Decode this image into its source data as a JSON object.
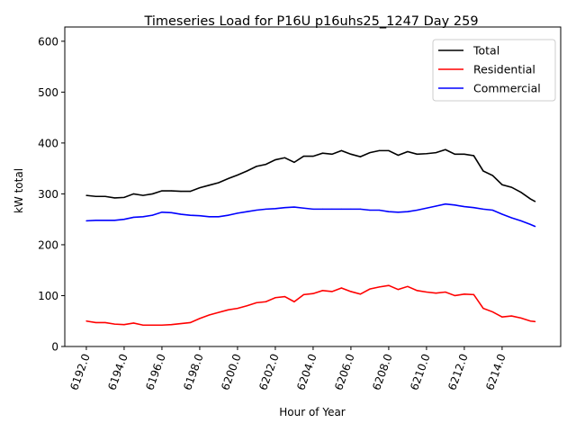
{
  "chart_data": {
    "type": "line",
    "title": "Timeseries Load for P16U p16uhs25_1247  Day 259",
    "xlabel": "Hour of Year",
    "ylabel": "kW total",
    "xlim": [
      6190.86,
      6217.1
    ],
    "ylim": [
      0,
      628
    ],
    "xticks": [
      6192,
      6194,
      6196,
      6198,
      6200,
      6202,
      6204,
      6206,
      6208,
      6210,
      6212,
      6214
    ],
    "xtick_labels": [
      "6192.0",
      "6194.0",
      "6196.0",
      "6198.0",
      "6200.0",
      "6202.0",
      "6204.0",
      "6206.0",
      "6208.0",
      "6210.0",
      "6212.0",
      "6214.0"
    ],
    "yticks": [
      0,
      100,
      200,
      300,
      400,
      500,
      600
    ],
    "ytick_labels": [
      "0",
      "100",
      "200",
      "300",
      "400",
      "500",
      "600"
    ],
    "legend": "top-right",
    "x": [
      6192,
      6192.5,
      6193,
      6193.5,
      6194,
      6194.5,
      6195,
      6195.5,
      6196,
      6196.5,
      6197,
      6197.5,
      6198,
      6198.5,
      6199,
      6199.5,
      6200,
      6200.5,
      6201,
      6201.5,
      6202,
      6202.5,
      6203,
      6203.5,
      6204,
      6204.5,
      6205,
      6205.5,
      6206,
      6206.5,
      6207,
      6207.5,
      6208,
      6208.5,
      6209,
      6209.5,
      6210,
      6210.5,
      6211,
      6211.5,
      6212,
      6212.5,
      6213,
      6213.5,
      6214,
      6214.5,
      6215,
      6215.5,
      6215.75
    ],
    "series": [
      {
        "name": "Total",
        "color": "#000000",
        "values": [
          297,
          295,
          295,
          292,
          293,
          300,
          297,
          300,
          306,
          306,
          305,
          305,
          312,
          317,
          322,
          330,
          337,
          345,
          354,
          358,
          367,
          371,
          362,
          374,
          374,
          380,
          378,
          385,
          378,
          373,
          381,
          385,
          385,
          376,
          383,
          378,
          379,
          381,
          387,
          378,
          378,
          375,
          345,
          336,
          318,
          313,
          303,
          290,
          285
        ]
      },
      {
        "name": "Residential",
        "color": "#ff0000",
        "values": [
          50,
          47,
          47,
          44,
          43,
          46,
          42,
          42,
          42,
          43,
          45,
          47,
          55,
          62,
          67,
          72,
          75,
          80,
          86,
          88,
          96,
          98,
          88,
          102,
          104,
          110,
          108,
          115,
          108,
          103,
          113,
          117,
          120,
          112,
          118,
          110,
          107,
          105,
          107,
          100,
          103,
          102,
          75,
          68,
          58,
          60,
          56,
          50,
          49
        ]
      },
      {
        "name": "Commercial",
        "color": "#0000ff",
        "values": [
          247,
          248,
          248,
          248,
          250,
          254,
          255,
          258,
          264,
          263,
          260,
          258,
          257,
          255,
          255,
          258,
          262,
          265,
          268,
          270,
          271,
          273,
          274,
          272,
          270,
          270,
          270,
          270,
          270,
          270,
          268,
          268,
          265,
          264,
          265,
          268,
          272,
          276,
          280,
          278,
          275,
          273,
          270,
          268,
          260,
          253,
          247,
          240,
          236
        ]
      }
    ]
  }
}
